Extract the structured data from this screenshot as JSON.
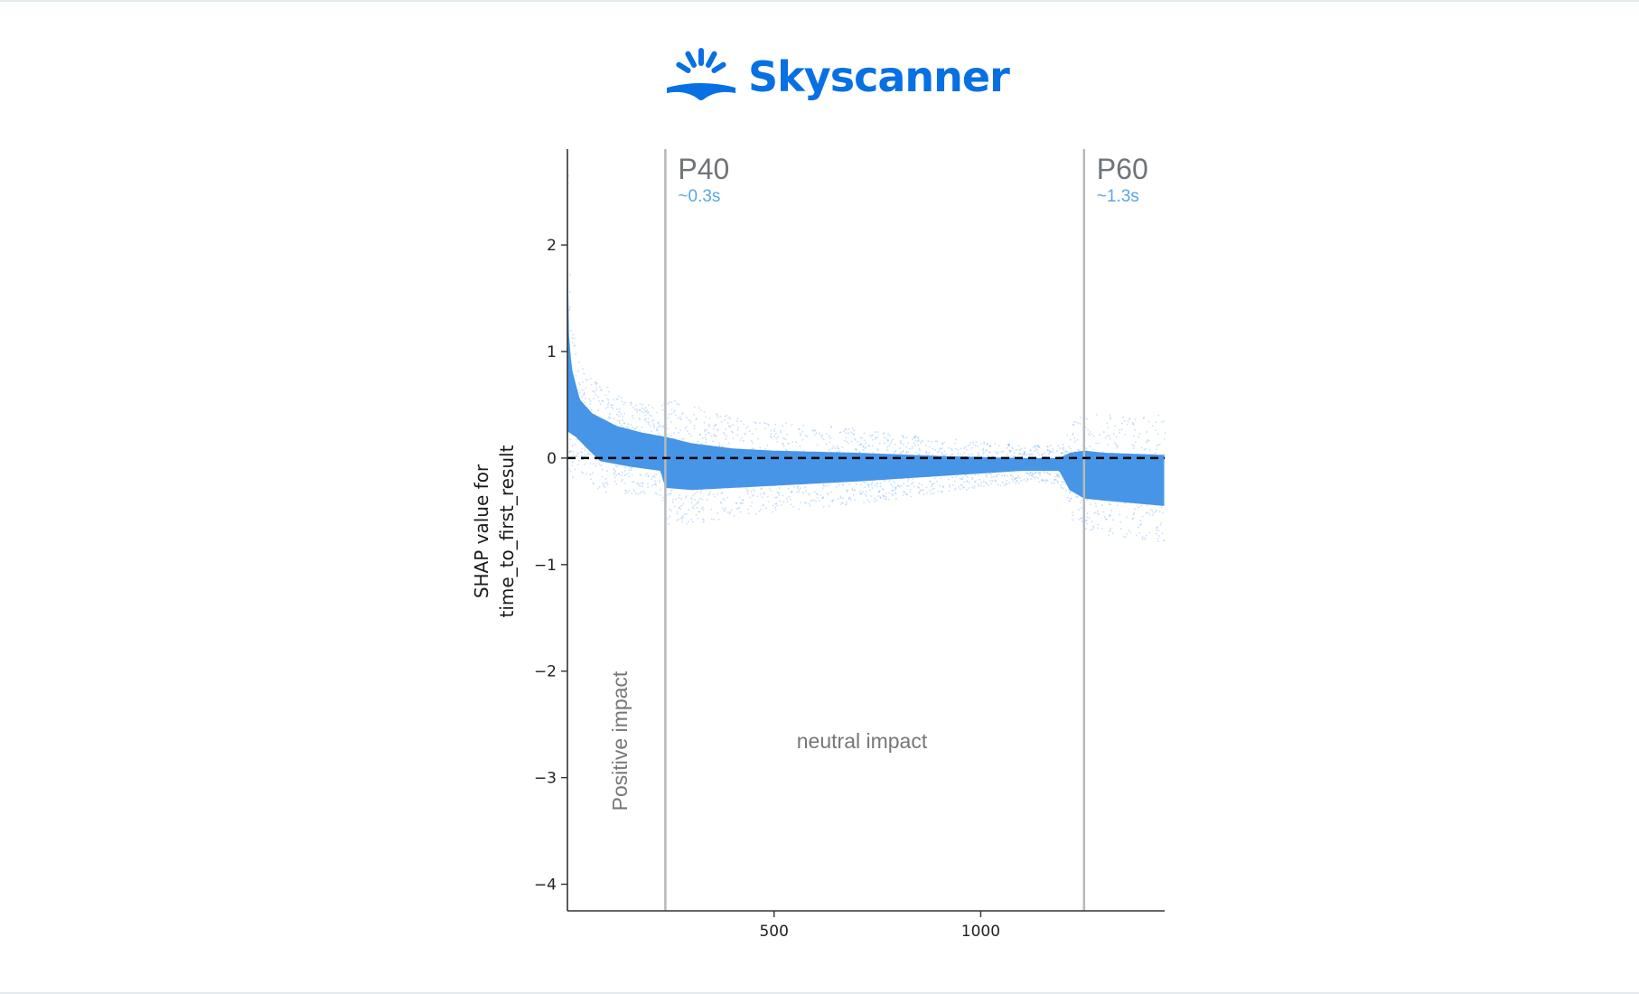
{
  "brand": {
    "name": "Skyscanner",
    "color": "#0770e3"
  },
  "chart_data": {
    "type": "scatter",
    "title": "",
    "xlabel": "",
    "ylabel": [
      "SHAP value for",
      "time_to_first_result"
    ],
    "xlim": [
      0,
      1445
    ],
    "ylim": [
      -4.25,
      2.9
    ],
    "x_ticks": [
      {
        "value": 500,
        "label": "500"
      },
      {
        "value": 1000,
        "label": "1000"
      }
    ],
    "y_ticks": [
      {
        "value": 2,
        "label": "2"
      },
      {
        "value": 1,
        "label": "1"
      },
      {
        "value": 0,
        "label": "0"
      },
      {
        "value": -1,
        "label": "−1"
      },
      {
        "value": -2,
        "label": "−2"
      },
      {
        "value": -3,
        "label": "−3"
      },
      {
        "value": -4,
        "label": "−4"
      }
    ],
    "reference_line": {
      "y": 0,
      "style": "dashed",
      "color": "#000000"
    },
    "point_color": "#3d8fe6",
    "band_color": "#3d8fe6",
    "band_upper": [
      [
        0,
        2.05
      ],
      [
        3,
        1.2
      ],
      [
        10,
        0.85
      ],
      [
        30,
        0.55
      ],
      [
        60,
        0.42
      ],
      [
        120,
        0.3
      ],
      [
        180,
        0.24
      ],
      [
        235,
        0.2
      ],
      [
        237,
        0.2
      ],
      [
        300,
        0.14
      ],
      [
        400,
        0.09
      ],
      [
        500,
        0.07
      ],
      [
        700,
        0.05
      ],
      [
        900,
        0.02
      ],
      [
        1100,
        0.0
      ],
      [
        1190,
        0.0
      ],
      [
        1215,
        0.05
      ],
      [
        1250,
        0.07
      ],
      [
        1300,
        0.05
      ],
      [
        1445,
        0.03
      ]
    ],
    "band_lower": [
      [
        0,
        0.25
      ],
      [
        20,
        0.2
      ],
      [
        50,
        0.08
      ],
      [
        80,
        -0.03
      ],
      [
        150,
        -0.08
      ],
      [
        225,
        -0.12
      ],
      [
        237,
        -0.28
      ],
      [
        300,
        -0.3
      ],
      [
        400,
        -0.28
      ],
      [
        500,
        -0.26
      ],
      [
        700,
        -0.22
      ],
      [
        900,
        -0.17
      ],
      [
        1100,
        -0.12
      ],
      [
        1190,
        -0.12
      ],
      [
        1215,
        -0.3
      ],
      [
        1250,
        -0.38
      ],
      [
        1300,
        -0.4
      ],
      [
        1445,
        -0.45
      ]
    ],
    "markers": [
      {
        "x": 237,
        "title": "P40",
        "subtitle": "~0.3s"
      },
      {
        "x": 1250,
        "title": "P60",
        "subtitle": "~1.3s"
      }
    ],
    "regions": [
      {
        "label": "Positive impact",
        "orientation": "vertical"
      },
      {
        "label": "neutral impact",
        "orientation": "horizontal"
      }
    ]
  }
}
